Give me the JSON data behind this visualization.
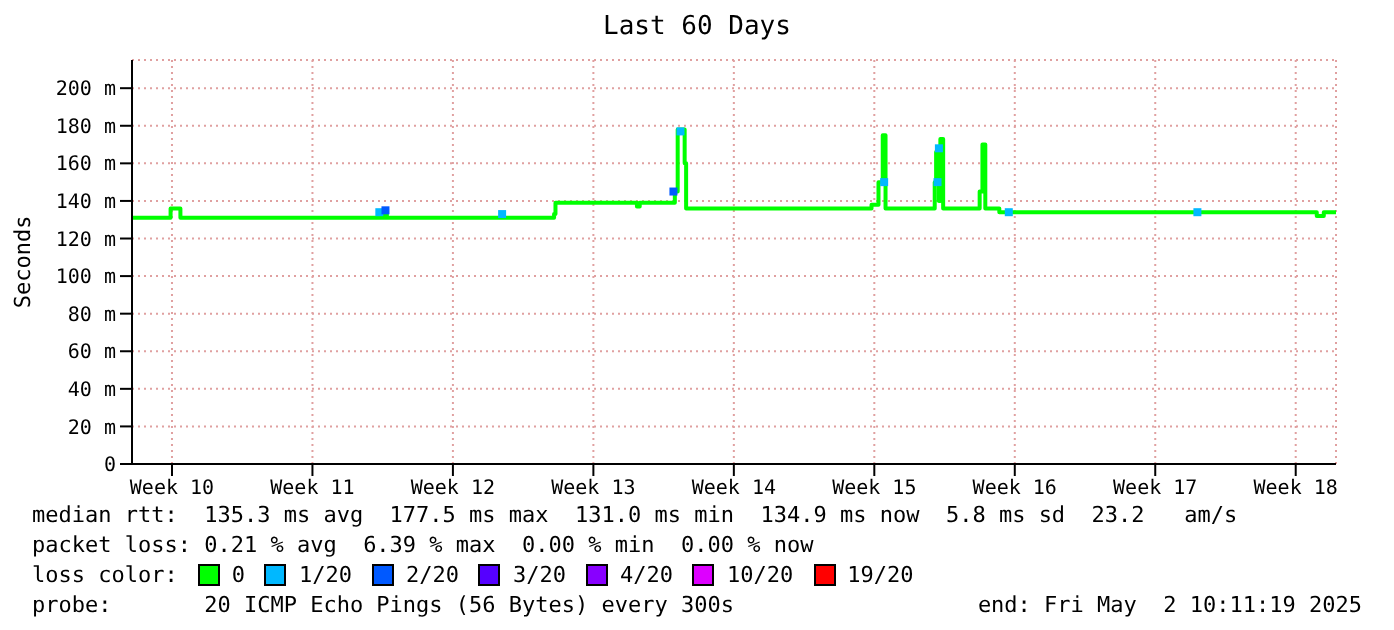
{
  "chart_data": {
    "type": "step",
    "title": "Last 60 Days",
    "ylabel": "Seconds",
    "legend_title": "loss color:",
    "legend": "bottom",
    "grid": true,
    "xlim": [
      "2025-03-03T10:11",
      "2025-05-02T10:11"
    ],
    "xticks": [
      {
        "value": "2025-03-05T10:00",
        "label": "Week 10"
      },
      {
        "value": "2025-03-12T10:00",
        "label": "Week 11"
      },
      {
        "value": "2025-03-19T10:00",
        "label": "Week 12"
      },
      {
        "value": "2025-03-26T10:00",
        "label": "Week 13"
      },
      {
        "value": "2025-04-02T10:00",
        "label": "Week 14"
      },
      {
        "value": "2025-04-09T10:00",
        "label": "Week 15"
      },
      {
        "value": "2025-04-16T10:00",
        "label": "Week 16"
      },
      {
        "value": "2025-04-23T10:00",
        "label": "Week 17"
      },
      {
        "value": "2025-04-30T10:00",
        "label": "Week 18"
      }
    ],
    "ylim": [
      0,
      215
    ],
    "yticks": [
      {
        "value": 0,
        "label": "0"
      },
      {
        "value": 20,
        "label": "20 m"
      },
      {
        "value": 40,
        "label": "40 m"
      },
      {
        "value": 60,
        "label": "60 m"
      },
      {
        "value": 80,
        "label": "80 m"
      },
      {
        "value": 100,
        "label": "100 m"
      },
      {
        "value": 120,
        "label": "120 m"
      },
      {
        "value": 140,
        "label": "140 m"
      },
      {
        "value": 160,
        "label": "160 m"
      },
      {
        "value": 180,
        "label": "180 m"
      },
      {
        "value": 200,
        "label": "200 m"
      }
    ],
    "series": [
      {
        "name": "0",
        "color": "#00ff00",
        "x": [
          "2025-03-03T10:11",
          "2025-03-05T06:40",
          "2025-03-05T08:20",
          "2025-03-05T18:25",
          "2025-03-05T20:05",
          "2025-03-15T22:00",
          "2025-03-15T23:40",
          "2025-03-16T03:00",
          "2025-03-24T07:35",
          "2025-03-24T11:00",
          "2025-03-24T12:40",
          "2025-03-28T12:25",
          "2025-03-28T14:05",
          "2025-03-28T17:25",
          "2025-03-30T06:25",
          "2025-03-30T11:25",
          "2025-03-30T14:50",
          "2025-03-30T21:30",
          "2025-03-30T23:10",
          "2025-03-31T00:55",
          "2025-04-08T17:10",
          "2025-04-09T06:40",
          "2025-04-09T15:00",
          "2025-04-09T20:05",
          "2025-04-09T23:25",
          "2025-04-12T05:10",
          "2025-04-12T10:15",
          "2025-04-12T11:55",
          "2025-04-12T15:15",
          "2025-04-12T17:00",
          "2025-04-12T20:20",
          "2025-04-14T07:35",
          "2025-04-14T16:00",
          "2025-04-14T19:20",
          "2025-04-14T22:45",
          "2025-04-15T12:10",
          "2025-04-15T15:30",
          "2025-05-01T02:50",
          "2025-05-01T11:10",
          "2025-05-01T19:35",
          "2025-05-02T10:11"
        ],
        "values": [
          131,
          131,
          136,
          136,
          131,
          131,
          134,
          131,
          131,
          133,
          139,
          139,
          137,
          139,
          139,
          145,
          178,
          178,
          160,
          136,
          136,
          138,
          150,
          175,
          136,
          136,
          150,
          166,
          140,
          173,
          136,
          136,
          145,
          170,
          136,
          136,
          134,
          134,
          132,
          134,
          135
        ]
      },
      {
        "name": "1/20",
        "color": "#00b8ff",
        "type": "scatter",
        "x": [
          "2025-03-15T18:00",
          "2025-03-21T20:50",
          "2025-03-30T18:10",
          "2025-04-09T21:45",
          "2025-04-12T13:35",
          "2025-04-12T15:15",
          "2025-04-16T02:50",
          "2025-04-25T12:25"
        ],
        "values": [
          134,
          133,
          177,
          150,
          150,
          168,
          134,
          134
        ]
      },
      {
        "name": "2/20",
        "color": "#0059ff",
        "type": "scatter",
        "x": [
          "2025-03-16T01:20",
          "2025-03-30T09:45"
        ],
        "values": [
          135,
          145
        ]
      },
      {
        "name": "3/20",
        "color": "#5500ff",
        "type": "scatter"
      },
      {
        "name": "4/20",
        "color": "#8800ff",
        "type": "scatter"
      },
      {
        "name": "10/20",
        "color": "#dd00ff",
        "type": "scatter"
      },
      {
        "name": "19/20",
        "color": "#ff0000",
        "type": "scatter"
      }
    ],
    "annotations": [
      "median rtt:  135.3 ms avg  177.5 ms max  131.0 ms min  134.9 ms now  5.8 ms sd  23.2   am/s",
      "packet loss: 0.21 % avg  6.39 % max  0.00 % min  0.00 % now",
      "probe:       20 ICMP Echo Pings (56 Bytes) every 300s",
      "end: Fri May  2 10:11:19 2025"
    ]
  }
}
